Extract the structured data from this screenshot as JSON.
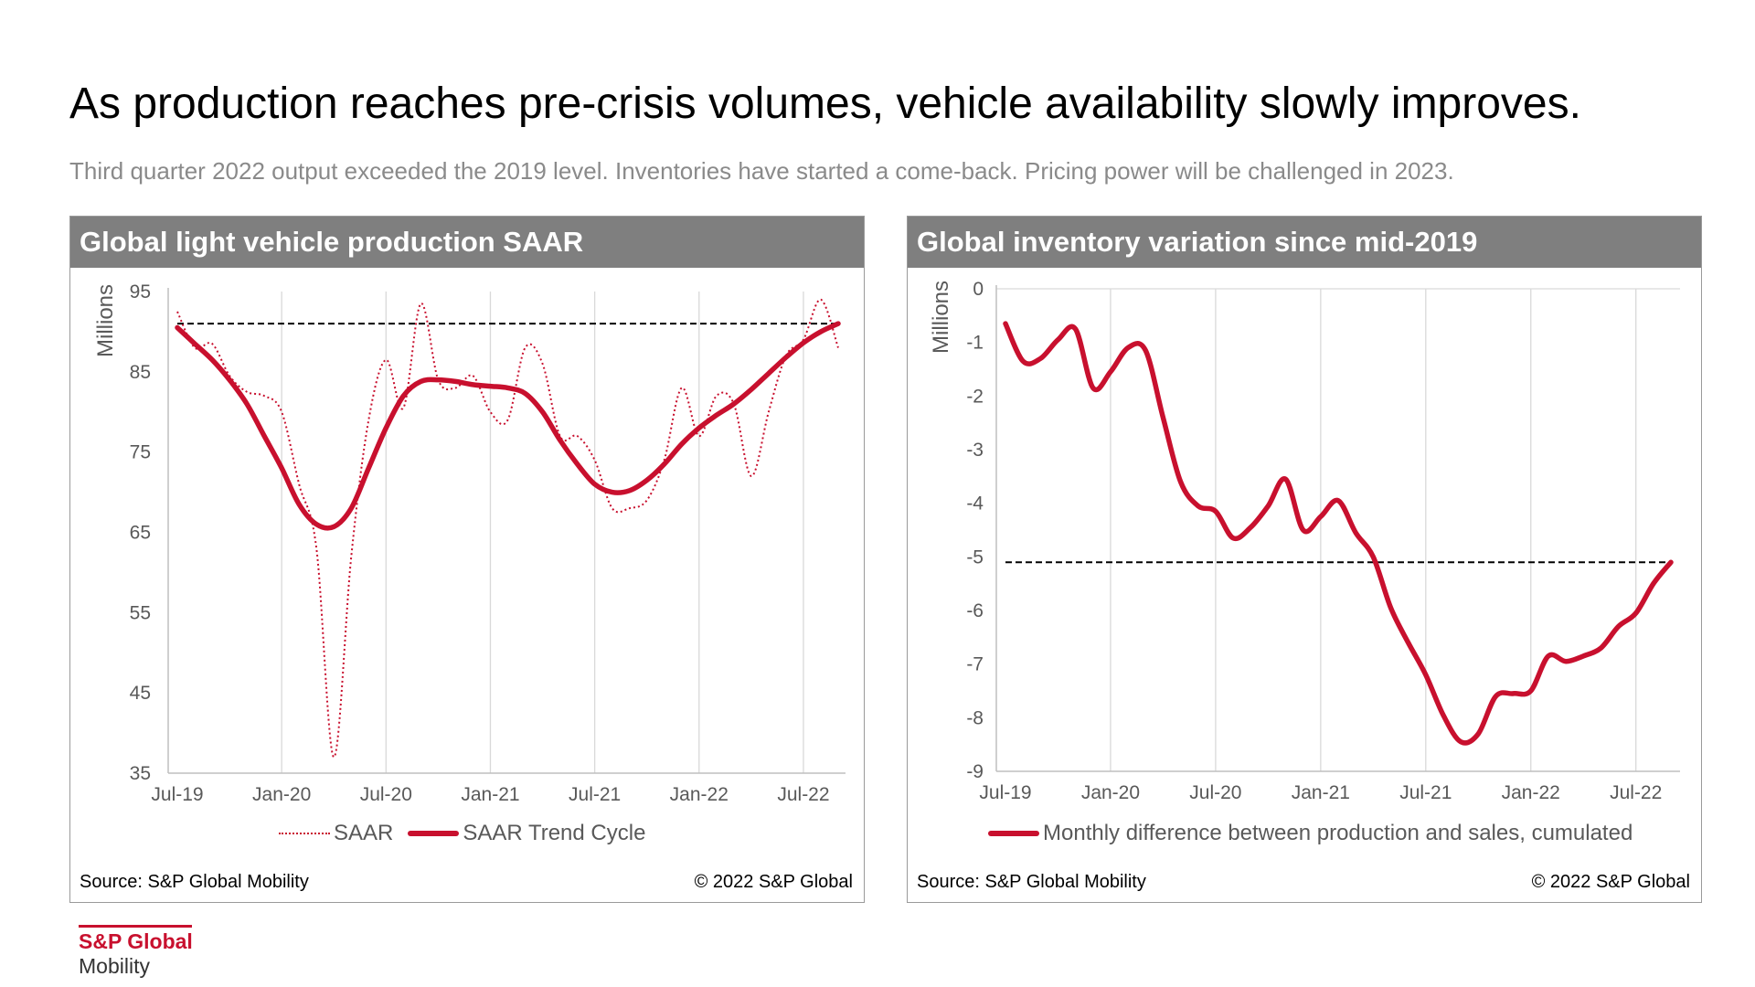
{
  "slide": {
    "title": "As production reaches pre-crisis volumes, vehicle availability slowly improves.",
    "subtitle": "Third quarter 2022 output exceeded the 2019 level. Inventories have started a come-back. Pricing power will be challenged in 2023."
  },
  "colors": {
    "accent": "#c8102e",
    "header_bg": "#7f7f7f",
    "gridline": "#d9d9d9",
    "axis_text": "#595959"
  },
  "panels": {
    "left": {
      "title": "Global light vehicle production SAAR",
      "source": "Source: S&P Global Mobility",
      "copyright": "© 2022 S&P Global"
    },
    "right": {
      "title": "Global inventory variation since mid-2019",
      "source": "Source: S&P Global Mobility",
      "copyright": "© 2022 S&P Global"
    }
  },
  "logo": {
    "brand": "S&P Global",
    "sub": "Mobility"
  },
  "chart_data": [
    {
      "type": "line",
      "title": "Global light vehicle production SAAR",
      "ylabel": "Millions",
      "ylim": [
        35,
        95
      ],
      "yticks": [
        35,
        45,
        55,
        65,
        75,
        85,
        95
      ],
      "x_categories": [
        "Jul-19",
        "Aug-19",
        "Sep-19",
        "Oct-19",
        "Nov-19",
        "Dec-19",
        "Jan-20",
        "Feb-20",
        "Mar-20",
        "Apr-20",
        "May-20",
        "Jun-20",
        "Jul-20",
        "Aug-20",
        "Sep-20",
        "Oct-20",
        "Nov-20",
        "Dec-20",
        "Jan-21",
        "Feb-21",
        "Mar-21",
        "Apr-21",
        "May-21",
        "Jun-21",
        "Jul-21",
        "Aug-21",
        "Sep-21",
        "Oct-21",
        "Nov-21",
        "Dec-21",
        "Jan-22",
        "Feb-22",
        "Mar-22",
        "Apr-22",
        "May-22",
        "Jun-22",
        "Jul-22",
        "Aug-22",
        "Sep-22"
      ],
      "x_ticks": [
        "Jul-19",
        "Jan-20",
        "Jul-20",
        "Jan-21",
        "Jul-21",
        "Jan-22",
        "Jul-22"
      ],
      "grid": "vertical",
      "legend_position": "bottom",
      "reference_line": 91,
      "series": [
        {
          "name": "SAAR",
          "style": "dotted",
          "values": [
            92.5,
            88,
            88.5,
            84.5,
            82.5,
            82,
            80,
            71,
            63,
            37,
            62,
            79,
            86.5,
            80.5,
            93.5,
            84,
            83,
            84.5,
            80,
            79,
            88,
            86,
            77,
            77,
            74,
            68,
            68,
            69,
            74,
            83,
            77,
            82,
            81,
            72,
            80,
            87,
            89,
            94,
            88
          ]
        },
        {
          "name": "SAAR Trend Cycle",
          "style": "solid",
          "values": [
            90.5,
            88.5,
            86.5,
            84,
            81,
            77,
            73,
            68.5,
            66,
            65.7,
            68,
            73,
            78,
            82,
            83.8,
            84,
            83.8,
            83.4,
            83.2,
            83,
            82.3,
            80,
            76.5,
            73.5,
            71,
            70,
            70.2,
            71.5,
            73.5,
            76,
            78,
            79.6,
            81,
            82.8,
            84.8,
            86.8,
            88.6,
            90,
            91
          ]
        }
      ]
    },
    {
      "type": "line",
      "title": "Global inventory variation since mid-2019",
      "ylabel": "Millions",
      "ylim": [
        -9,
        0
      ],
      "yticks": [
        0,
        -1,
        -2,
        -3,
        -4,
        -5,
        -6,
        -7,
        -8,
        -9
      ],
      "x_categories": [
        "Jul-19",
        "Aug-19",
        "Sep-19",
        "Oct-19",
        "Nov-19",
        "Dec-19",
        "Jan-20",
        "Feb-20",
        "Mar-20",
        "Apr-20",
        "May-20",
        "Jun-20",
        "Jul-20",
        "Aug-20",
        "Sep-20",
        "Oct-20",
        "Nov-20",
        "Dec-20",
        "Jan-21",
        "Feb-21",
        "Mar-21",
        "Apr-21",
        "May-21",
        "Jun-21",
        "Jul-21",
        "Aug-21",
        "Sep-21",
        "Oct-21",
        "Nov-21",
        "Dec-21",
        "Jan-22",
        "Feb-22",
        "Mar-22",
        "Apr-22",
        "May-22",
        "Jun-22",
        "Jul-22",
        "Aug-22",
        "Sep-22"
      ],
      "x_ticks": [
        "Jul-19",
        "Jan-20",
        "Jul-20",
        "Jan-21",
        "Jul-21",
        "Jan-22",
        "Jul-22"
      ],
      "grid": "vertical",
      "legend_position": "bottom",
      "reference_line": -5.1,
      "series": [
        {
          "name": "Monthly difference between production and sales, cumulated",
          "style": "solid",
          "values": [
            -0.65,
            -1.35,
            -1.3,
            -0.95,
            -0.75,
            -1.85,
            -1.55,
            -1.1,
            -1.15,
            -2.4,
            -3.6,
            -4.05,
            -4.15,
            -4.65,
            -4.45,
            -4.05,
            -3.55,
            -4.5,
            -4.25,
            -3.95,
            -4.55,
            -5.0,
            -5.95,
            -6.6,
            -7.2,
            -7.95,
            -8.45,
            -8.3,
            -7.6,
            -7.55,
            -7.5,
            -6.85,
            -6.95,
            -6.85,
            -6.7,
            -6.3,
            -6.05,
            -5.5,
            -5.1
          ]
        }
      ]
    }
  ],
  "legends": {
    "left": [
      "SAAR",
      "SAAR Trend Cycle"
    ],
    "right": [
      "Monthly difference between production and sales, cumulated"
    ]
  }
}
